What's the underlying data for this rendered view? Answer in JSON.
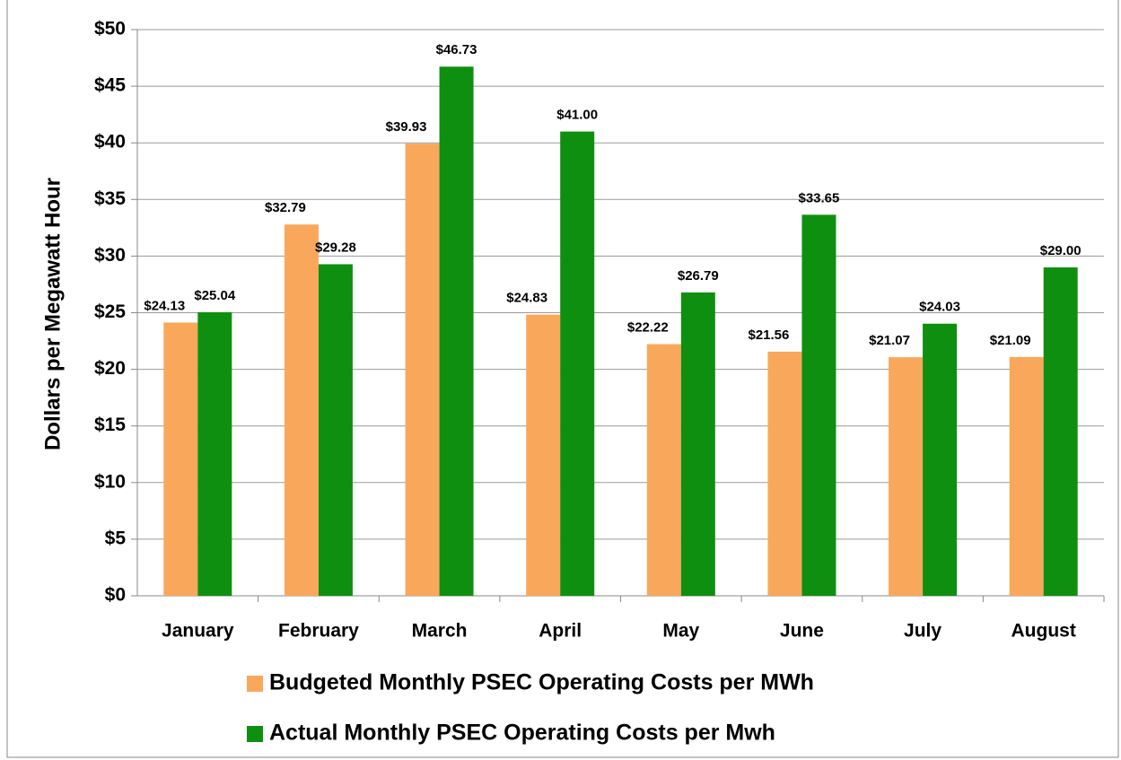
{
  "chart_data": {
    "type": "bar",
    "y_label": "Dollars per Megawatt Hour",
    "categories": [
      "January",
      "February",
      "March",
      "April",
      "May",
      "June",
      "July",
      "August"
    ],
    "series": [
      {
        "name": "Budgeted Monthly PSEC Operating Costs per MWh",
        "color": "#f9a85b",
        "values": [
          24.13,
          32.79,
          39.93,
          24.83,
          22.22,
          21.56,
          21.07,
          21.09
        ],
        "value_labels": [
          "$24.13",
          "$32.79",
          "$39.93",
          "$24.83",
          "$22.22",
          "$21.56",
          "$21.07",
          "$21.09"
        ]
      },
      {
        "name": "Actual Monthly PSEC Operating Costs per Mwh",
        "color": "#0f8f0f",
        "values": [
          25.04,
          29.28,
          46.73,
          41.0,
          26.79,
          33.65,
          24.03,
          29.0
        ],
        "value_labels": [
          "$25.04",
          "$29.28",
          "$46.73",
          "$41.00",
          "$26.79",
          "$33.65",
          "$24.03",
          "$29.00"
        ]
      }
    ],
    "ylim": [
      0,
      50
    ],
    "yticks": [
      {
        "value": 0,
        "label": "$0"
      },
      {
        "value": 5,
        "label": "$5"
      },
      {
        "value": 10,
        "label": "$10"
      },
      {
        "value": 15,
        "label": "$15"
      },
      {
        "value": 20,
        "label": "$20"
      },
      {
        "value": 25,
        "label": "$25"
      },
      {
        "value": 30,
        "label": "$30"
      },
      {
        "value": 35,
        "label": "$35"
      },
      {
        "value": 40,
        "label": "$40"
      },
      {
        "value": 45,
        "label": "$45"
      },
      {
        "value": 50,
        "label": "$50"
      }
    ],
    "grid": true
  }
}
